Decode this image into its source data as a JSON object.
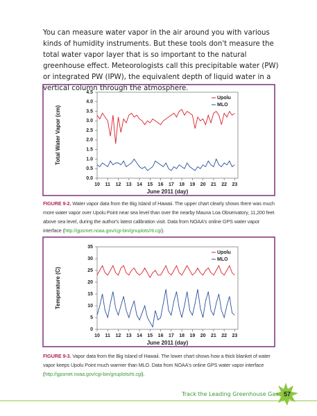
{
  "paragraph": "You can measure water vapor in the air around you with various kinds of humidity instruments. But these tools don't measure the total water vapor layer that is so important to the natural greenhouse effect. Meteorologists call this precipitable water (PW) or integrated PW (IPW), the equivalent depth of liquid water in a vertical column through the atmosphere.",
  "captions": [
    {
      "label": "FIGURE 9-2.",
      "text": " Water vapor data from the Big Island of Hawaii. The upper chart clearly shows there was much more water vapor over Upolu Point near sea level than over the nearby Mauna Loa Observatory, 11,200 feet above sea level, during the author's latest calibration visit. Data from NOAA's online GPS water vapor interface (",
      "link": "http://gpsmet.noaa.gov/cgi-bin/gnuplots/rti.cgi",
      "end": ")."
    },
    {
      "label": "FIGURE 9-3.",
      "text": " Vapor data from the Big Island of Hawaii. The lower chart shows how a thick blanket of water vapor keeps Upolu Point much warmer than MLO. Data from NOAA's online GPS water vapor interface (",
      "link": "http://gpsmet.noaa.gov/cgi-bin/gnuplots/rti.cgi",
      "end": ")."
    }
  ],
  "footer": "Track the Leading Greenhouse Gas",
  "page_number": "57",
  "chart_data": [
    {
      "type": "line",
      "x_label": "June 2011 (day)",
      "y_label": "Total Water Vapor (cm)",
      "x": [
        10,
        10.25,
        10.5,
        10.75,
        11,
        11.25,
        11.5,
        11.75,
        12,
        12.25,
        12.5,
        12.75,
        13,
        13.25,
        13.5,
        13.75,
        14,
        14.25,
        14.5,
        14.75,
        15,
        15.25,
        15.5,
        15.75,
        16,
        16.25,
        16.5,
        16.75,
        17,
        17.25,
        17.5,
        17.75,
        18,
        18.25,
        18.5,
        18.75,
        19,
        19.25,
        19.5,
        19.75,
        20,
        20.25,
        20.5,
        20.75,
        21,
        21.25,
        21.5,
        21.75,
        22,
        22.25,
        22.5,
        22.75,
        23
      ],
      "series": [
        {
          "name": "Upolu",
          "color": "#d9202a",
          "values": [
            3.3,
            3.1,
            3.4,
            3.2,
            3.0,
            2.2,
            3.3,
            1.8,
            3.2,
            2.4,
            3.1,
            2.9,
            3.3,
            3.4,
            3.2,
            3.3,
            3.1,
            3.0,
            2.8,
            3.0,
            2.9,
            3.1,
            3.0,
            2.9,
            2.8,
            3.0,
            3.1,
            3.2,
            3.3,
            3.4,
            3.2,
            3.5,
            3.6,
            3.3,
            3.5,
            3.4,
            3.3,
            2.6,
            3.2,
            3.0,
            3.1,
            2.8,
            3.3,
            2.9,
            3.4,
            3.5,
            3.3,
            2.8,
            3.4,
            3.2,
            3.5,
            3.3,
            3.4
          ]
        },
        {
          "name": "MLO",
          "color": "#2a4f9a",
          "values": [
            0.7,
            0.6,
            0.8,
            0.7,
            0.6,
            0.9,
            0.7,
            0.8,
            0.8,
            0.7,
            0.9,
            0.6,
            0.7,
            0.8,
            1.0,
            0.8,
            0.6,
            0.5,
            0.6,
            0.4,
            0.5,
            0.6,
            0.9,
            0.8,
            0.7,
            0.6,
            0.8,
            0.5,
            0.4,
            0.6,
            0.5,
            0.7,
            0.6,
            0.5,
            0.8,
            0.6,
            0.5,
            0.4,
            0.6,
            0.5,
            0.7,
            0.6,
            0.9,
            0.7,
            0.6,
            1.0,
            0.7,
            0.6,
            0.8,
            0.7,
            0.9,
            0.6,
            0.7
          ]
        }
      ],
      "xlim": [
        10,
        23.3
      ],
      "xticks": [
        10,
        11,
        12,
        13,
        14,
        15,
        16,
        17,
        18,
        19,
        20,
        21,
        22,
        23
      ],
      "ylim": [
        0,
        4.5
      ],
      "yticks": [
        {
          "value": 0,
          "label": "0.0"
        },
        0.5,
        {
          "value": 1,
          "label": "1.0"
        },
        1.5,
        {
          "value": 2,
          "label": "2.0"
        },
        2.5,
        {
          "value": 3,
          "label": "3.0"
        },
        3.5,
        {
          "value": 4,
          "label": "4.0"
        },
        4.5
      ],
      "legend": "upper right"
    },
    {
      "type": "line",
      "x_label": "June 2011 (day)",
      "y_label": "Temperature (C)",
      "x": [
        10,
        10.25,
        10.5,
        10.75,
        11,
        11.25,
        11.5,
        11.75,
        12,
        12.25,
        12.5,
        12.75,
        13,
        13.25,
        13.5,
        13.75,
        14,
        14.25,
        14.5,
        14.75,
        15,
        15.25,
        15.5,
        15.75,
        16,
        16.25,
        16.5,
        16.75,
        17,
        17.25,
        17.5,
        17.75,
        18,
        18.25,
        18.5,
        18.75,
        19,
        19.25,
        19.5,
        19.75,
        20,
        20.25,
        20.5,
        20.75,
        21,
        21.25,
        21.5,
        21.75,
        22,
        22.25,
        22.5,
        22.75,
        23
      ],
      "series": [
        {
          "name": "Upolu",
          "color": "#d9202a",
          "values": [
            23,
            25,
            27,
            24,
            23,
            25,
            27,
            24,
            23,
            26,
            27,
            24,
            23,
            25,
            26,
            24,
            23,
            24,
            26,
            24,
            22,
            24,
            25,
            23,
            23,
            25,
            27,
            24,
            23,
            25,
            27,
            24,
            23,
            25,
            27,
            25,
            23,
            24,
            26,
            24,
            23,
            25,
            26,
            24,
            23,
            25,
            27,
            24,
            23,
            25,
            27,
            24,
            23
          ]
        },
        {
          "name": "MLO",
          "color": "#2a4f9a",
          "values": [
            6,
            10,
            15,
            8,
            5,
            11,
            16,
            9,
            6,
            10,
            14,
            8,
            5,
            9,
            12,
            6,
            4,
            7,
            10,
            5,
            3,
            1,
            8,
            4,
            5,
            11,
            17,
            8,
            6,
            12,
            16,
            9,
            5,
            10,
            16,
            8,
            6,
            11,
            17,
            9,
            5,
            12,
            16,
            8,
            6,
            11,
            15,
            8,
            5,
            10,
            14,
            7,
            6
          ]
        }
      ],
      "xlim": [
        10,
        23.3
      ],
      "xticks": [
        10,
        11,
        12,
        13,
        14,
        15,
        16,
        17,
        18,
        19,
        20,
        21,
        22,
        23
      ],
      "ylim": [
        0,
        35
      ],
      "yticks": [
        0,
        5,
        10,
        15,
        20,
        25,
        30,
        35
      ],
      "legend": "upper right"
    }
  ]
}
